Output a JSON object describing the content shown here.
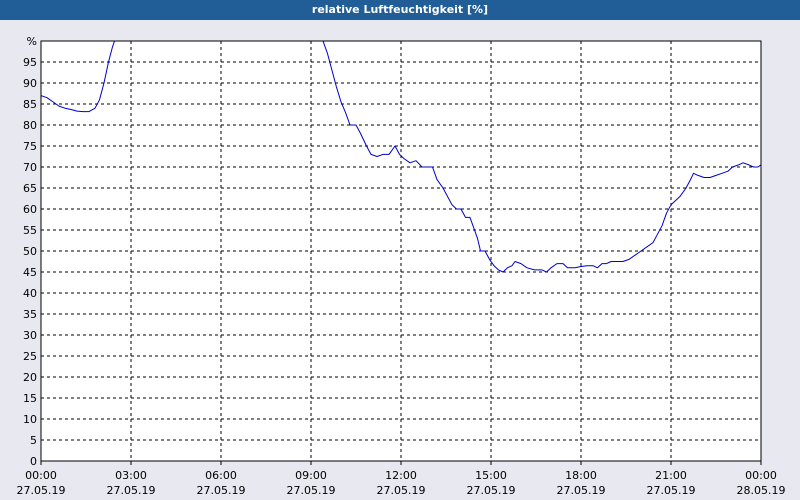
{
  "window": {
    "title": "relative Luftfeuchtigkeit [%]"
  },
  "colors": {
    "title_bar": "#215d97",
    "plot_background": "#ffffff",
    "outer_background": "#e8e8f0",
    "line": "#0000cc",
    "grid": "#000000"
  },
  "chart_data": {
    "type": "line",
    "title": "relative Luftfeuchtigkeit [%]",
    "y_unit_label": "%",
    "ylim": [
      0,
      100
    ],
    "y_ticks": [
      0,
      5,
      10,
      15,
      20,
      25,
      30,
      35,
      40,
      45,
      50,
      55,
      60,
      65,
      70,
      75,
      80,
      85,
      90,
      95
    ],
    "xlim_hours": [
      0,
      24
    ],
    "x_ticks": [
      {
        "hour": 0,
        "time": "00:00",
        "date": "27.05.19"
      },
      {
        "hour": 3,
        "time": "03:00",
        "date": "27.05.19"
      },
      {
        "hour": 6,
        "time": "06:00",
        "date": "27.05.19"
      },
      {
        "hour": 9,
        "time": "09:00",
        "date": "27.05.19"
      },
      {
        "hour": 12,
        "time": "12:00",
        "date": "27.05.19"
      },
      {
        "hour": 15,
        "time": "15:00",
        "date": "27.05.19"
      },
      {
        "hour": 18,
        "time": "18:00",
        "date": "27.05.19"
      },
      {
        "hour": 21,
        "time": "21:00",
        "date": "27.05.19"
      },
      {
        "hour": 24,
        "time": "00:00",
        "date": "28.05.19"
      }
    ],
    "grid": true,
    "series": [
      {
        "segments": [
          [
            [
              0.0,
              87
            ],
            [
              0.2,
              86.5
            ],
            [
              0.4,
              85.5
            ],
            [
              0.6,
              84.5
            ],
            [
              0.8,
              84
            ],
            [
              1.0,
              83.7
            ],
            [
              1.2,
              83.3
            ],
            [
              1.4,
              83.2
            ],
            [
              1.6,
              83.2
            ],
            [
              1.8,
              84
            ],
            [
              1.95,
              86
            ],
            [
              2.1,
              90
            ],
            [
              2.25,
              95
            ],
            [
              2.38,
              98.5
            ],
            [
              2.45,
              100
            ]
          ],
          [
            [
              9.4,
              100
            ],
            [
              9.55,
              97
            ],
            [
              9.7,
              93
            ],
            [
              9.85,
              89
            ],
            [
              10.0,
              85.5
            ],
            [
              10.15,
              83
            ],
            [
              10.3,
              80
            ],
            [
              10.5,
              80
            ],
            [
              10.65,
              78
            ],
            [
              10.85,
              75
            ],
            [
              11.0,
              73
            ],
            [
              11.2,
              72.5
            ],
            [
              11.4,
              73
            ],
            [
              11.6,
              73
            ],
            [
              11.8,
              75
            ],
            [
              11.95,
              73
            ],
            [
              12.1,
              72
            ],
            [
              12.3,
              71
            ],
            [
              12.5,
              71.5
            ],
            [
              12.7,
              70
            ],
            [
              12.9,
              70
            ],
            [
              13.05,
              70
            ],
            [
              13.2,
              67
            ],
            [
              13.4,
              65
            ],
            [
              13.55,
              63
            ],
            [
              13.7,
              61
            ],
            [
              13.85,
              60
            ],
            [
              14.0,
              60
            ],
            [
              14.15,
              58
            ],
            [
              14.3,
              58
            ],
            [
              14.45,
              55
            ],
            [
              14.55,
              53
            ],
            [
              14.65,
              50
            ],
            [
              14.8,
              50
            ],
            [
              14.95,
              48
            ],
            [
              15.1,
              46.5
            ],
            [
              15.25,
              45.5
            ],
            [
              15.4,
              45
            ],
            [
              15.55,
              46
            ],
            [
              15.7,
              46.5
            ],
            [
              15.8,
              47.5
            ],
            [
              16.0,
              47
            ],
            [
              16.2,
              46
            ],
            [
              16.45,
              45.5
            ],
            [
              16.7,
              45.5
            ],
            [
              16.85,
              45
            ],
            [
              17.0,
              46
            ],
            [
              17.2,
              47
            ],
            [
              17.4,
              47
            ],
            [
              17.55,
              46
            ],
            [
              17.8,
              46
            ],
            [
              18.0,
              46.3
            ],
            [
              18.2,
              46.5
            ],
            [
              18.4,
              46.5
            ],
            [
              18.55,
              46
            ],
            [
              18.7,
              47
            ],
            [
              18.85,
              47
            ],
            [
              19.0,
              47.5
            ],
            [
              19.2,
              47.5
            ],
            [
              19.4,
              47.5
            ],
            [
              19.6,
              48
            ],
            [
              19.8,
              49
            ],
            [
              20.0,
              50
            ],
            [
              20.2,
              51
            ],
            [
              20.4,
              52
            ],
            [
              20.55,
              54
            ],
            [
              20.7,
              56
            ],
            [
              20.85,
              59
            ],
            [
              21.0,
              61
            ],
            [
              21.15,
              62
            ],
            [
              21.3,
              63
            ],
            [
              21.5,
              65
            ],
            [
              21.65,
              67
            ],
            [
              21.75,
              68.5
            ],
            [
              21.9,
              68
            ],
            [
              22.1,
              67.5
            ],
            [
              22.3,
              67.5
            ],
            [
              22.5,
              68
            ],
            [
              22.7,
              68.5
            ],
            [
              22.9,
              69
            ],
            [
              23.05,
              70
            ],
            [
              23.25,
              70.5
            ],
            [
              23.4,
              71
            ],
            [
              23.6,
              70.5
            ],
            [
              23.75,
              70
            ],
            [
              23.9,
              70
            ],
            [
              24.1,
              71
            ],
            [
              24.3,
              71.5
            ],
            [
              24.45,
              71
            ],
            [
              24.6,
              70.5
            ],
            [
              24.75,
              69.5
            ],
            [
              24.9,
              69
            ],
            [
              25.0,
              69.5
            ]
          ]
        ]
      }
    ]
  }
}
